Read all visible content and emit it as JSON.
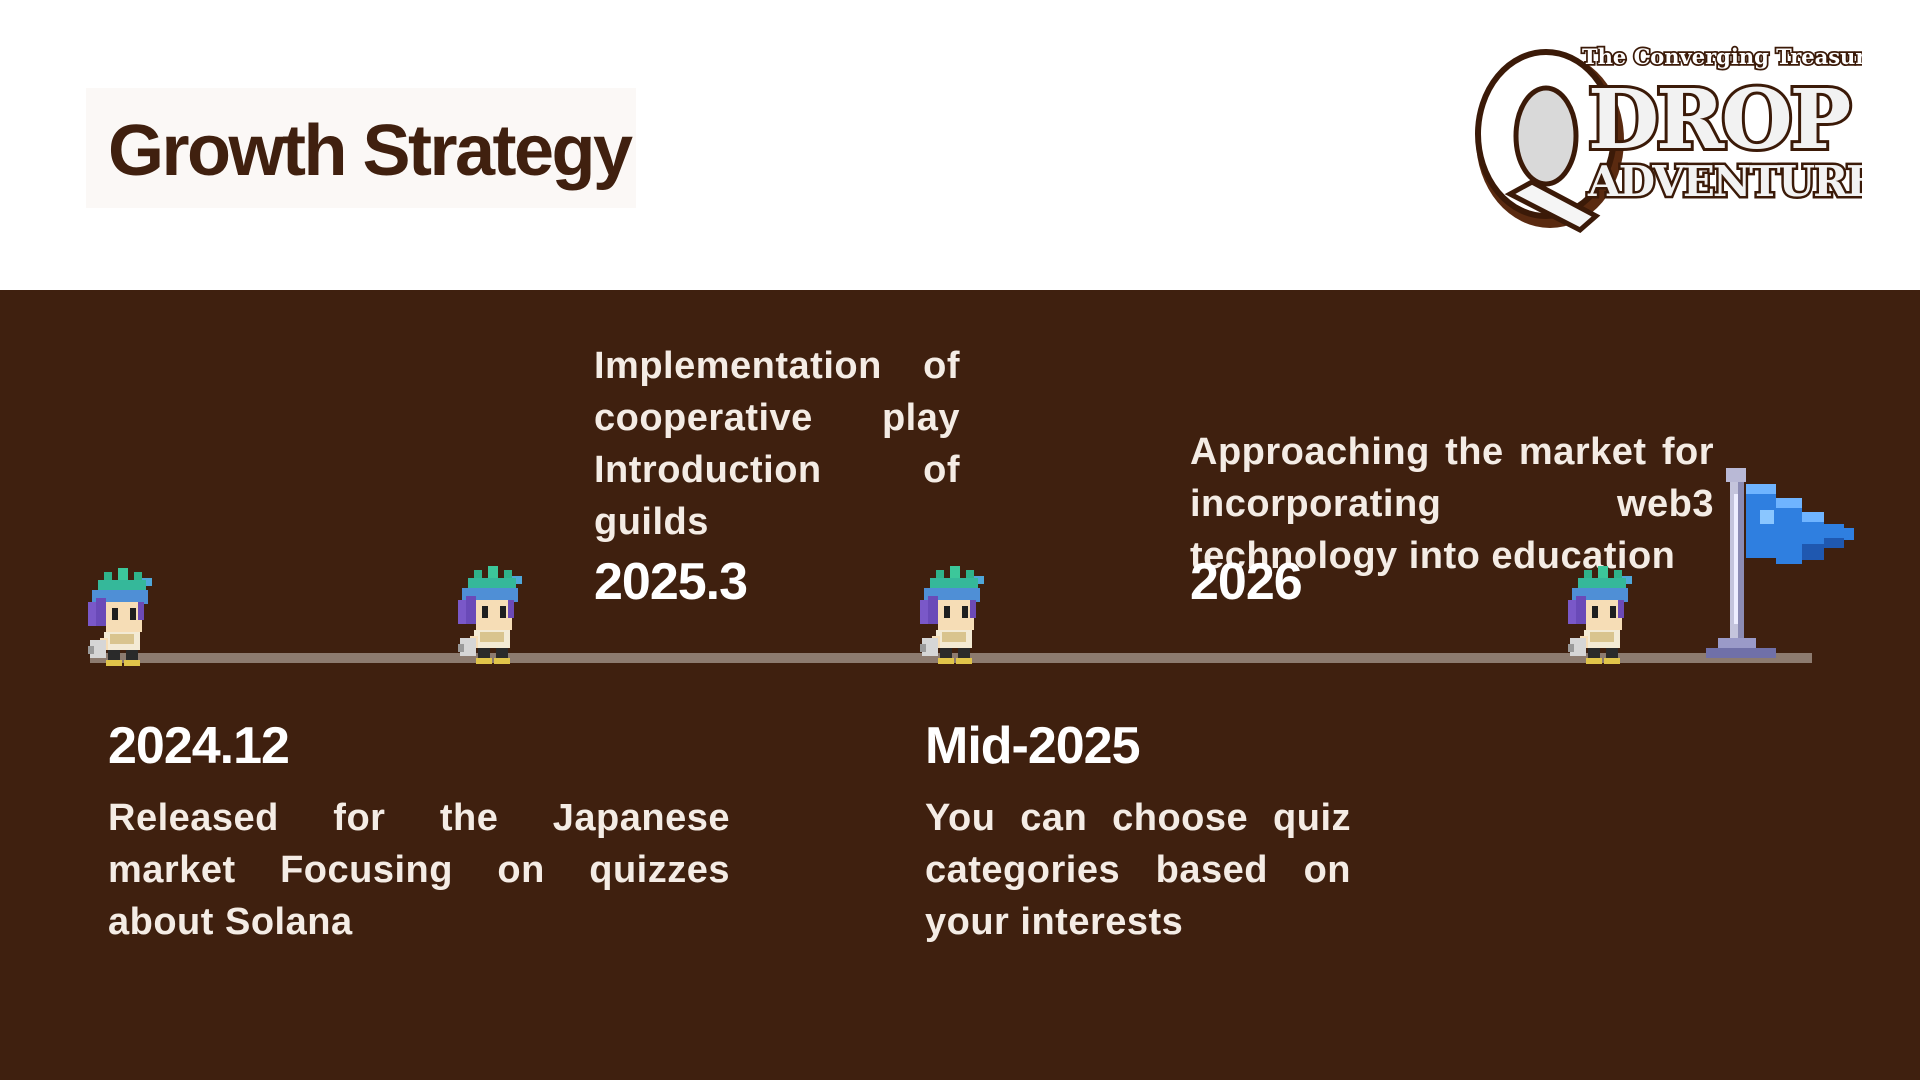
{
  "slide": {
    "title": "Growth Strategy"
  },
  "logo": {
    "tagline": "The Converging Treasures",
    "name": "QDROP",
    "subtitle": "ADVENTURE"
  },
  "timeline": [
    {
      "date": "2024.12",
      "description": "Released for the Japanese market Focusing on quizzes about Solana"
    },
    {
      "date": "2025.3",
      "description": "Implementation of cooperative play Introduction of guilds"
    },
    {
      "date": "Mid-2025",
      "description": "You can choose quiz categories based on your interests"
    },
    {
      "date": "2026",
      "description": "Approaching the market for incorporating web3 technology into education"
    }
  ],
  "colors": {
    "panel_background": "#3f200f",
    "title_text": "#40200f",
    "track": "#8d7b6f",
    "flag": "#2f7fe0"
  },
  "icons": [
    "pixel-hero-character-icon",
    "goal-flag-icon"
  ]
}
